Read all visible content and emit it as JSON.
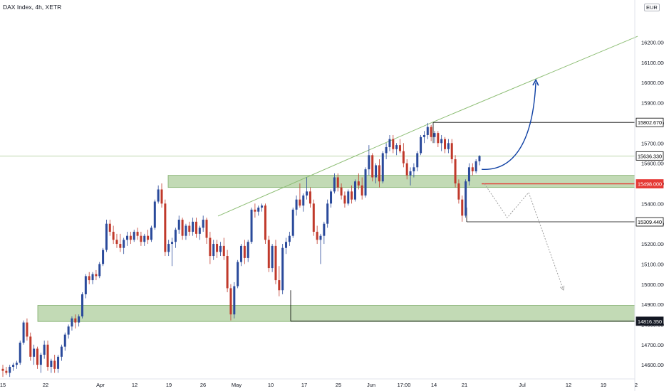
{
  "chart_title": "DAX Index, 4h, XETR",
  "currency": "EUR",
  "colors": {
    "up": "#2a4a9b",
    "down": "#c0392b",
    "zone_fill": "#b7d3a8",
    "zone_stroke": "#7fae6a",
    "trendline": "#8cbd73",
    "arrow_up": "#0d3fa3",
    "arrow_down": "#9e9e9e",
    "support_line": "#e53935",
    "level_line": "#000000",
    "crosshair": "#a5c98f",
    "axis_text": "#131722"
  },
  "chart_data": {
    "type": "candlestick",
    "title": "DAX Index, 4h, XETR",
    "ylim": [
      14530,
      16410
    ],
    "y_ticks": [
      14600,
      14700,
      14800,
      14900,
      15000,
      15100,
      15200,
      15300,
      15400,
      15500,
      15600,
      15700,
      15800,
      15900,
      16000,
      16100,
      16200
    ],
    "x_ticks": [
      "15",
      "22",
      "Apr",
      "12",
      "19",
      "26",
      "May",
      "10",
      "17",
      "25",
      "Jun",
      "17:00",
      "14",
      "21",
      "Jul",
      "12",
      "19",
      "2"
    ],
    "price_labels": [
      {
        "text": "15802.670",
        "value": 15802.67,
        "style": "outline"
      },
      {
        "text": "15636.330",
        "value": 15636.33,
        "style": "outline"
      },
      {
        "text": "15498.000",
        "value": 15498.0,
        "style": "red"
      },
      {
        "text": "15309.440",
        "value": 15309.44,
        "style": "outline"
      },
      {
        "text": "14816.350",
        "value": 14816.35,
        "style": "dark"
      }
    ],
    "zones": [
      {
        "name": "resistance-zone",
        "y_low": 15480,
        "y_high": 15540
      },
      {
        "name": "support-zone",
        "y_low": 14815,
        "y_high": 14895
      }
    ],
    "trendlines": [
      {
        "name": "upper-trendline",
        "from": {
          "i": 0.54,
          "v": 15010
        },
        "to": {
          "i": 1.0,
          "v": 16230
        }
      },
      {
        "name": "lower-trendline",
        "from": {
          "i": 0.33,
          "v": 15338
        },
        "to": {
          "i": 0.652,
          "v": 15805
        }
      }
    ],
    "candles": [
      {
        "o": 14580,
        "h": 14600,
        "l": 14540,
        "c": 14570
      },
      {
        "o": 14570,
        "h": 14590,
        "l": 14550,
        "c": 14560
      },
      {
        "o": 14560,
        "h": 14600,
        "l": 14540,
        "c": 14590
      },
      {
        "o": 14590,
        "h": 14610,
        "l": 14570,
        "c": 14600
      },
      {
        "o": 14600,
        "h": 14620,
        "l": 14580,
        "c": 14610
      },
      {
        "o": 14610,
        "h": 14720,
        "l": 14600,
        "c": 14710
      },
      {
        "o": 14710,
        "h": 14820,
        "l": 14700,
        "c": 14810
      },
      {
        "o": 14810,
        "h": 14830,
        "l": 14720,
        "c": 14740
      },
      {
        "o": 14740,
        "h": 14760,
        "l": 14620,
        "c": 14640
      },
      {
        "o": 14640,
        "h": 14700,
        "l": 14600,
        "c": 14680
      },
      {
        "o": 14680,
        "h": 14690,
        "l": 14580,
        "c": 14600
      },
      {
        "o": 14600,
        "h": 14660,
        "l": 14560,
        "c": 14650
      },
      {
        "o": 14650,
        "h": 14720,
        "l": 14630,
        "c": 14700
      },
      {
        "o": 14700,
        "h": 14720,
        "l": 14570,
        "c": 14590
      },
      {
        "o": 14590,
        "h": 14630,
        "l": 14560,
        "c": 14620
      },
      {
        "o": 14620,
        "h": 14650,
        "l": 14560,
        "c": 14580
      },
      {
        "o": 14580,
        "h": 14650,
        "l": 14560,
        "c": 14640
      },
      {
        "o": 14640,
        "h": 14700,
        "l": 14620,
        "c": 14690
      },
      {
        "o": 14690,
        "h": 14760,
        "l": 14670,
        "c": 14750
      },
      {
        "o": 14750,
        "h": 14800,
        "l": 14730,
        "c": 14790
      },
      {
        "o": 14790,
        "h": 14840,
        "l": 14770,
        "c": 14830
      },
      {
        "o": 14830,
        "h": 14850,
        "l": 14780,
        "c": 14810
      },
      {
        "o": 14810,
        "h": 14850,
        "l": 14790,
        "c": 14840
      },
      {
        "o": 14840,
        "h": 14960,
        "l": 14830,
        "c": 14950
      },
      {
        "o": 14950,
        "h": 15050,
        "l": 14930,
        "c": 15040
      },
      {
        "o": 15040,
        "h": 15060,
        "l": 15000,
        "c": 15020
      },
      {
        "o": 15020,
        "h": 15060,
        "l": 15000,
        "c": 15050
      },
      {
        "o": 15050,
        "h": 15070,
        "l": 15020,
        "c": 15040
      },
      {
        "o": 15040,
        "h": 15110,
        "l": 15030,
        "c": 15100
      },
      {
        "o": 15100,
        "h": 15180,
        "l": 15090,
        "c": 15170
      },
      {
        "o": 15170,
        "h": 15320,
        "l": 15160,
        "c": 15300
      },
      {
        "o": 15300,
        "h": 15320,
        "l": 15240,
        "c": 15260
      },
      {
        "o": 15260,
        "h": 15290,
        "l": 15200,
        "c": 15220
      },
      {
        "o": 15220,
        "h": 15250,
        "l": 15180,
        "c": 15200
      },
      {
        "o": 15200,
        "h": 15250,
        "l": 15160,
        "c": 15180
      },
      {
        "o": 15180,
        "h": 15230,
        "l": 15150,
        "c": 15220
      },
      {
        "o": 15220,
        "h": 15260,
        "l": 15190,
        "c": 15240
      },
      {
        "o": 15240,
        "h": 15260,
        "l": 15200,
        "c": 15220
      },
      {
        "o": 15220,
        "h": 15270,
        "l": 15210,
        "c": 15260
      },
      {
        "o": 15260,
        "h": 15280,
        "l": 15220,
        "c": 15240
      },
      {
        "o": 15240,
        "h": 15260,
        "l": 15190,
        "c": 15210
      },
      {
        "o": 15210,
        "h": 15250,
        "l": 15190,
        "c": 15240
      },
      {
        "o": 15240,
        "h": 15270,
        "l": 15200,
        "c": 15220
      },
      {
        "o": 15220,
        "h": 15290,
        "l": 15210,
        "c": 15280
      },
      {
        "o": 15280,
        "h": 15420,
        "l": 15270,
        "c": 15410
      },
      {
        "o": 15410,
        "h": 15490,
        "l": 15400,
        "c": 15470
      },
      {
        "o": 15470,
        "h": 15500,
        "l": 15380,
        "c": 15400
      },
      {
        "o": 15400,
        "h": 15420,
        "l": 15140,
        "c": 15160
      },
      {
        "o": 15160,
        "h": 15220,
        "l": 15140,
        "c": 15200
      },
      {
        "o": 15200,
        "h": 15230,
        "l": 15090,
        "c": 15210
      },
      {
        "o": 15210,
        "h": 15280,
        "l": 15180,
        "c": 15270
      },
      {
        "o": 15270,
        "h": 15340,
        "l": 15250,
        "c": 15320
      },
      {
        "o": 15320,
        "h": 15330,
        "l": 15220,
        "c": 15240
      },
      {
        "o": 15240,
        "h": 15300,
        "l": 15220,
        "c": 15290
      },
      {
        "o": 15290,
        "h": 15310,
        "l": 15240,
        "c": 15260
      },
      {
        "o": 15260,
        "h": 15330,
        "l": 15240,
        "c": 15310
      },
      {
        "o": 15310,
        "h": 15330,
        "l": 15230,
        "c": 15250
      },
      {
        "o": 15250,
        "h": 15290,
        "l": 15220,
        "c": 15280
      },
      {
        "o": 15280,
        "h": 15340,
        "l": 15260,
        "c": 15320
      },
      {
        "o": 15320,
        "h": 15330,
        "l": 15200,
        "c": 15230
      },
      {
        "o": 15230,
        "h": 15260,
        "l": 15100,
        "c": 15140
      },
      {
        "o": 15140,
        "h": 15220,
        "l": 15120,
        "c": 15200
      },
      {
        "o": 15200,
        "h": 15220,
        "l": 15130,
        "c": 15160
      },
      {
        "o": 15160,
        "h": 15210,
        "l": 15140,
        "c": 15190
      },
      {
        "o": 15190,
        "h": 15230,
        "l": 15120,
        "c": 15140
      },
      {
        "o": 15140,
        "h": 15170,
        "l": 14960,
        "c": 14980
      },
      {
        "o": 14980,
        "h": 15000,
        "l": 14820,
        "c": 14850
      },
      {
        "o": 14850,
        "h": 15010,
        "l": 14830,
        "c": 14990
      },
      {
        "o": 14990,
        "h": 15120,
        "l": 14980,
        "c": 15110
      },
      {
        "o": 15110,
        "h": 15200,
        "l": 15090,
        "c": 15190
      },
      {
        "o": 15190,
        "h": 15220,
        "l": 15100,
        "c": 15130
      },
      {
        "o": 15130,
        "h": 15220,
        "l": 15110,
        "c": 15210
      },
      {
        "o": 15210,
        "h": 15380,
        "l": 15200,
        "c": 15370
      },
      {
        "o": 15370,
        "h": 15400,
        "l": 15330,
        "c": 15360
      },
      {
        "o": 15360,
        "h": 15390,
        "l": 15340,
        "c": 15380
      },
      {
        "o": 15380,
        "h": 15400,
        "l": 15360,
        "c": 15390
      },
      {
        "o": 15390,
        "h": 15400,
        "l": 15200,
        "c": 15220
      },
      {
        "o": 15220,
        "h": 15240,
        "l": 15060,
        "c": 15080
      },
      {
        "o": 15080,
        "h": 15200,
        "l": 15060,
        "c": 15190
      },
      {
        "o": 15190,
        "h": 15220,
        "l": 15000,
        "c": 15020
      },
      {
        "o": 15020,
        "h": 15090,
        "l": 14940,
        "c": 14970
      },
      {
        "o": 14970,
        "h": 15200,
        "l": 14950,
        "c": 15180
      },
      {
        "o": 15180,
        "h": 15230,
        "l": 15150,
        "c": 15210
      },
      {
        "o": 15210,
        "h": 15260,
        "l": 15190,
        "c": 15240
      },
      {
        "o": 15240,
        "h": 15380,
        "l": 15230,
        "c": 15370
      },
      {
        "o": 15370,
        "h": 15440,
        "l": 15340,
        "c": 15420
      },
      {
        "o": 15420,
        "h": 15500,
        "l": 15380,
        "c": 15390
      },
      {
        "o": 15390,
        "h": 15450,
        "l": 15360,
        "c": 15440
      },
      {
        "o": 15440,
        "h": 15530,
        "l": 15420,
        "c": 15460
      },
      {
        "o": 15460,
        "h": 15480,
        "l": 15380,
        "c": 15400
      },
      {
        "o": 15400,
        "h": 15420,
        "l": 15240,
        "c": 15260
      },
      {
        "o": 15260,
        "h": 15290,
        "l": 15200,
        "c": 15220
      },
      {
        "o": 15220,
        "h": 15250,
        "l": 15100,
        "c": 15240
      },
      {
        "o": 15240,
        "h": 15310,
        "l": 15200,
        "c": 15300
      },
      {
        "o": 15300,
        "h": 15420,
        "l": 15280,
        "c": 15400
      },
      {
        "o": 15400,
        "h": 15470,
        "l": 15380,
        "c": 15460
      },
      {
        "o": 15460,
        "h": 15550,
        "l": 15450,
        "c": 15530
      },
      {
        "o": 15530,
        "h": 15550,
        "l": 15460,
        "c": 15480
      },
      {
        "o": 15480,
        "h": 15500,
        "l": 15420,
        "c": 15440
      },
      {
        "o": 15440,
        "h": 15460,
        "l": 15380,
        "c": 15400
      },
      {
        "o": 15400,
        "h": 15470,
        "l": 15390,
        "c": 15460
      },
      {
        "o": 15460,
        "h": 15490,
        "l": 15400,
        "c": 15420
      },
      {
        "o": 15420,
        "h": 15520,
        "l": 15410,
        "c": 15510
      },
      {
        "o": 15510,
        "h": 15550,
        "l": 15470,
        "c": 15490
      },
      {
        "o": 15490,
        "h": 15530,
        "l": 15420,
        "c": 15440
      },
      {
        "o": 15440,
        "h": 15580,
        "l": 15430,
        "c": 15570
      },
      {
        "o": 15570,
        "h": 15690,
        "l": 15540,
        "c": 15640
      },
      {
        "o": 15640,
        "h": 15650,
        "l": 15510,
        "c": 15530
      },
      {
        "o": 15530,
        "h": 15600,
        "l": 15500,
        "c": 15590
      },
      {
        "o": 15590,
        "h": 15620,
        "l": 15480,
        "c": 15510
      },
      {
        "o": 15510,
        "h": 15660,
        "l": 15500,
        "c": 15650
      },
      {
        "o": 15650,
        "h": 15700,
        "l": 15620,
        "c": 15680
      },
      {
        "o": 15680,
        "h": 15740,
        "l": 15660,
        "c": 15720
      },
      {
        "o": 15720,
        "h": 15740,
        "l": 15650,
        "c": 15670
      },
      {
        "o": 15670,
        "h": 15700,
        "l": 15640,
        "c": 15690
      },
      {
        "o": 15690,
        "h": 15720,
        "l": 15650,
        "c": 15660
      },
      {
        "o": 15660,
        "h": 15700,
        "l": 15580,
        "c": 15600
      },
      {
        "o": 15600,
        "h": 15620,
        "l": 15520,
        "c": 15540
      },
      {
        "o": 15540,
        "h": 15580,
        "l": 15490,
        "c": 15560
      },
      {
        "o": 15560,
        "h": 15600,
        "l": 15530,
        "c": 15580
      },
      {
        "o": 15580,
        "h": 15660,
        "l": 15560,
        "c": 15650
      },
      {
        "o": 15650,
        "h": 15740,
        "l": 15640,
        "c": 15730
      },
      {
        "o": 15730,
        "h": 15760,
        "l": 15700,
        "c": 15740
      },
      {
        "o": 15740,
        "h": 15800,
        "l": 15720,
        "c": 15780
      },
      {
        "o": 15780,
        "h": 15790,
        "l": 15710,
        "c": 15730
      },
      {
        "o": 15730,
        "h": 15760,
        "l": 15700,
        "c": 15750
      },
      {
        "o": 15750,
        "h": 15760,
        "l": 15680,
        "c": 15700
      },
      {
        "o": 15700,
        "h": 15740,
        "l": 15660,
        "c": 15720
      },
      {
        "o": 15720,
        "h": 15730,
        "l": 15650,
        "c": 15670
      },
      {
        "o": 15670,
        "h": 15720,
        "l": 15650,
        "c": 15700
      },
      {
        "o": 15700,
        "h": 15720,
        "l": 15600,
        "c": 15620
      },
      {
        "o": 15620,
        "h": 15640,
        "l": 15480,
        "c": 15500
      },
      {
        "o": 15500,
        "h": 15520,
        "l": 15400,
        "c": 15420
      },
      {
        "o": 15420,
        "h": 15440,
        "l": 15310,
        "c": 15340
      },
      {
        "o": 15340,
        "h": 15520,
        "l": 15330,
        "c": 15510
      },
      {
        "o": 15510,
        "h": 15600,
        "l": 15490,
        "c": 15580
      },
      {
        "o": 15580,
        "h": 15600,
        "l": 15540,
        "c": 15560
      },
      {
        "o": 15560,
        "h": 15620,
        "l": 15550,
        "c": 15610
      },
      {
        "o": 15610,
        "h": 15640,
        "l": 15590,
        "c": 15636
      }
    ],
    "annotations": [
      {
        "name": "projection-up-arrow",
        "from": {
          "i": 1.02,
          "v": 15570
        },
        "to": {
          "i": 1.62,
          "v": 16000
        }
      },
      {
        "name": "projection-down-zigzag",
        "points": [
          {
            "i": 1.0,
            "v": 15498
          },
          {
            "i": 1.33,
            "v": 15330
          },
          {
            "i": 1.53,
            "v": 15455
          },
          {
            "i": 2.06,
            "v": 14980
          }
        ]
      }
    ]
  }
}
